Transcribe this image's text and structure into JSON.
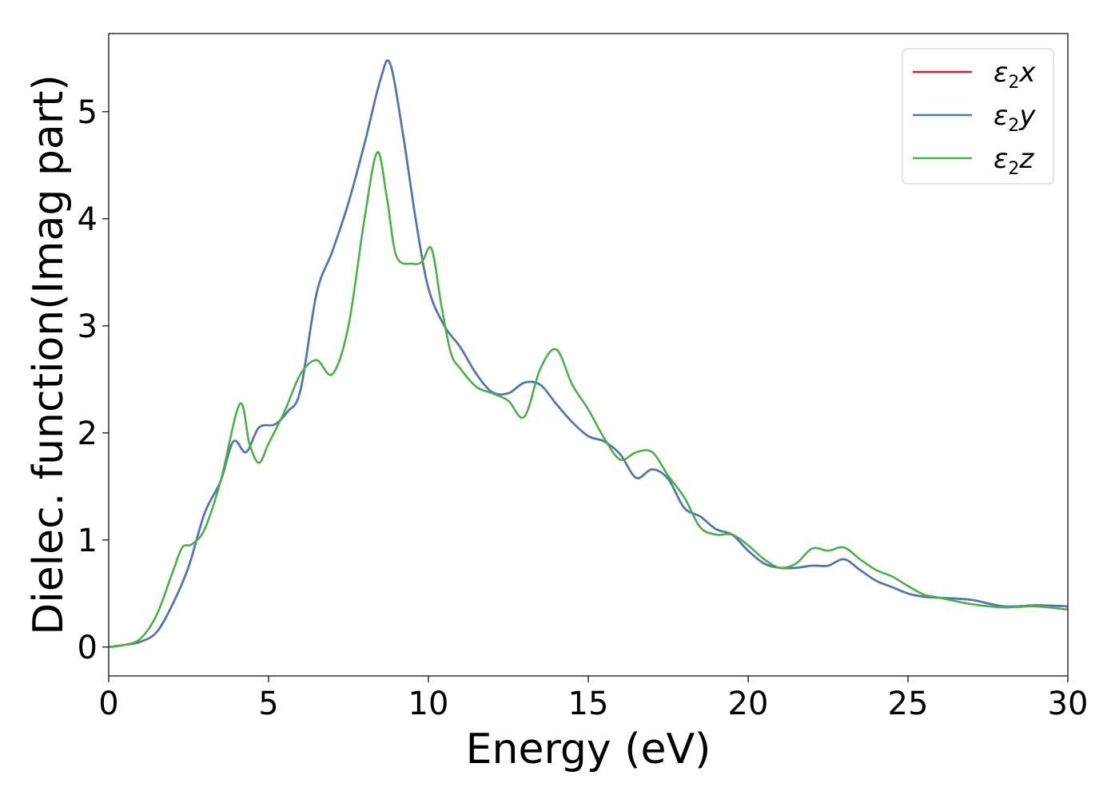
{
  "chart_data": {
    "type": "line",
    "xlabel": "Energy (eV)",
    "ylabel": "Dielec. function(Imag part)",
    "xlim": [
      0,
      30
    ],
    "ylim": [
      -0.27,
      5.73
    ],
    "xticks": [
      0,
      5,
      10,
      15,
      20,
      25,
      30
    ],
    "yticks": [
      0,
      1,
      2,
      3,
      4,
      5
    ],
    "grid": false,
    "legend_position": "top-right",
    "legend": [
      {
        "symbol": "ε",
        "sub": "2",
        "var": "x",
        "color": "#e41a1c"
      },
      {
        "symbol": "ε",
        "sub": "2",
        "var": "y",
        "color": "#4a7ab5"
      },
      {
        "symbol": "ε",
        "sub": "2",
        "var": "z",
        "color": "#4daf4a"
      }
    ],
    "series": [
      {
        "color": "#e41a1c",
        "x": [
          0,
          0.5,
          1,
          1.5,
          2,
          2.5,
          3,
          3.5,
          3.9,
          4.3,
          4.7,
          5.2,
          5.6,
          6,
          6.5,
          7,
          7.5,
          8,
          8.5,
          8.8,
          9.2,
          9.6,
          10,
          10.5,
          11,
          11.5,
          12,
          12.5,
          13,
          13.5,
          14,
          14.5,
          15,
          15.5,
          16,
          16.5,
          17,
          17.5,
          18,
          18.5,
          19,
          19.5,
          20,
          20.5,
          21,
          21.5,
          22,
          22.5,
          23,
          23.5,
          24,
          24.5,
          25,
          25.5,
          26,
          27,
          28,
          29,
          30
        ],
        "values": [
          0,
          0.02,
          0.05,
          0.14,
          0.4,
          0.75,
          1.25,
          1.55,
          1.92,
          1.82,
          2.05,
          2.08,
          2.2,
          2.4,
          3.3,
          3.7,
          4.15,
          4.7,
          5.3,
          5.45,
          4.8,
          4.0,
          3.35,
          3.0,
          2.8,
          2.55,
          2.38,
          2.37,
          2.47,
          2.45,
          2.27,
          2.1,
          1.97,
          1.92,
          1.8,
          1.58,
          1.66,
          1.57,
          1.3,
          1.22,
          1.1,
          1.05,
          0.9,
          0.78,
          0.74,
          0.74,
          0.76,
          0.76,
          0.82,
          0.72,
          0.62,
          0.56,
          0.5,
          0.47,
          0.46,
          0.44,
          0.38,
          0.39,
          0.38
        ]
      },
      {
        "color": "#4a7ab5",
        "x": [
          0,
          0.5,
          1,
          1.5,
          2,
          2.5,
          3,
          3.5,
          3.9,
          4.3,
          4.7,
          5.2,
          5.6,
          6,
          6.5,
          7,
          7.5,
          8,
          8.5,
          8.8,
          9.2,
          9.6,
          10,
          10.5,
          11,
          11.5,
          12,
          12.5,
          13,
          13.5,
          14,
          14.5,
          15,
          15.5,
          16,
          16.5,
          17,
          17.5,
          18,
          18.5,
          19,
          19.5,
          20,
          20.5,
          21,
          21.5,
          22,
          22.5,
          23,
          23.5,
          24,
          24.5,
          25,
          25.5,
          26,
          27,
          28,
          29,
          30
        ],
        "values": [
          0,
          0.02,
          0.05,
          0.14,
          0.4,
          0.75,
          1.25,
          1.55,
          1.92,
          1.82,
          2.05,
          2.08,
          2.2,
          2.4,
          3.3,
          3.7,
          4.15,
          4.7,
          5.3,
          5.45,
          4.8,
          4.0,
          3.35,
          3.0,
          2.8,
          2.55,
          2.38,
          2.37,
          2.47,
          2.45,
          2.27,
          2.1,
          1.97,
          1.92,
          1.8,
          1.58,
          1.66,
          1.57,
          1.3,
          1.22,
          1.1,
          1.05,
          0.9,
          0.78,
          0.74,
          0.74,
          0.76,
          0.76,
          0.82,
          0.72,
          0.62,
          0.56,
          0.5,
          0.47,
          0.46,
          0.44,
          0.38,
          0.39,
          0.38
        ]
      },
      {
        "color": "#4daf4a",
        "x": [
          0,
          0.5,
          1,
          1.5,
          2,
          2.3,
          2.6,
          3,
          3.5,
          4.1,
          4.4,
          4.7,
          5,
          5.5,
          6,
          6.5,
          7,
          7.5,
          8,
          8.4,
          8.7,
          9,
          9.5,
          9.8,
          10.1,
          10.4,
          10.7,
          11,
          11.5,
          12,
          12.5,
          13,
          13.5,
          14,
          14.5,
          15,
          15.5,
          16,
          16.5,
          17,
          17.5,
          18,
          18.5,
          19,
          19.5,
          20,
          20.5,
          21,
          21.5,
          22,
          22.5,
          23,
          23.5,
          24,
          24.5,
          25,
          25.5,
          26,
          27,
          28,
          29,
          30
        ],
        "values": [
          0,
          0.02,
          0.08,
          0.3,
          0.7,
          0.93,
          0.96,
          1.1,
          1.55,
          2.27,
          1.9,
          1.72,
          1.9,
          2.2,
          2.55,
          2.68,
          2.55,
          3.0,
          4.0,
          4.62,
          4.2,
          3.65,
          3.58,
          3.6,
          3.72,
          3.2,
          2.75,
          2.6,
          2.43,
          2.37,
          2.3,
          2.15,
          2.6,
          2.78,
          2.45,
          2.22,
          1.95,
          1.75,
          1.82,
          1.82,
          1.6,
          1.4,
          1.12,
          1.05,
          1.05,
          0.95,
          0.82,
          0.74,
          0.78,
          0.92,
          0.9,
          0.93,
          0.82,
          0.72,
          0.66,
          0.57,
          0.49,
          0.46,
          0.4,
          0.37,
          0.38,
          0.35
        ]
      }
    ]
  }
}
